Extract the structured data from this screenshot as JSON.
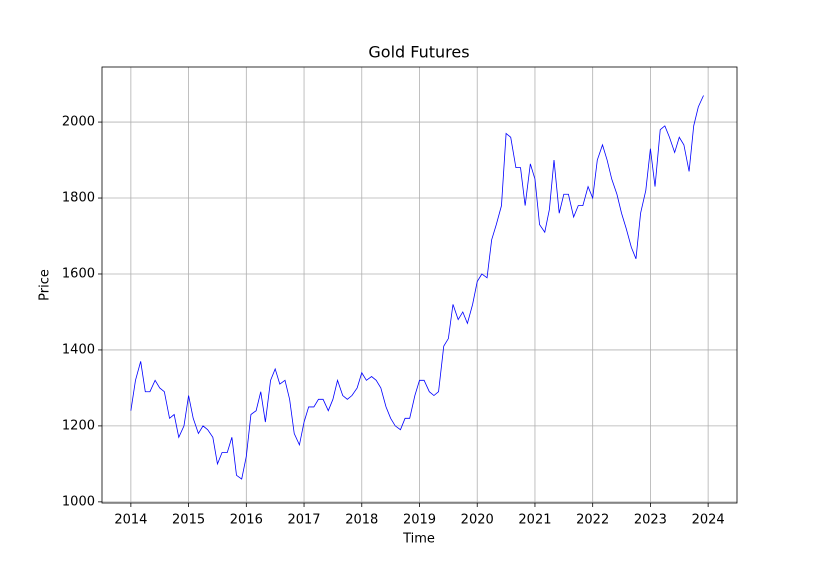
{
  "chart_data": {
    "type": "line",
    "title": "Gold Futures",
    "xlabel": "Time",
    "ylabel": "Price",
    "x": [
      2014.0,
      2014.08,
      2014.17,
      2014.25,
      2014.33,
      2014.42,
      2014.5,
      2014.58,
      2014.67,
      2014.75,
      2014.83,
      2014.92,
      2015.0,
      2015.08,
      2015.17,
      2015.25,
      2015.33,
      2015.42,
      2015.5,
      2015.58,
      2015.67,
      2015.75,
      2015.83,
      2015.92,
      2016.0,
      2016.08,
      2016.17,
      2016.25,
      2016.33,
      2016.42,
      2016.5,
      2016.58,
      2016.67,
      2016.75,
      2016.83,
      2016.92,
      2017.0,
      2017.08,
      2017.17,
      2017.25,
      2017.33,
      2017.42,
      2017.5,
      2017.58,
      2017.67,
      2017.75,
      2017.83,
      2017.92,
      2018.0,
      2018.08,
      2018.17,
      2018.25,
      2018.33,
      2018.42,
      2018.5,
      2018.58,
      2018.67,
      2018.75,
      2018.83,
      2018.92,
      2019.0,
      2019.08,
      2019.17,
      2019.25,
      2019.33,
      2019.42,
      2019.5,
      2019.58,
      2019.67,
      2019.75,
      2019.83,
      2019.92,
      2020.0,
      2020.08,
      2020.17,
      2020.25,
      2020.33,
      2020.42,
      2020.5,
      2020.58,
      2020.67,
      2020.75,
      2020.83,
      2020.92,
      2021.0,
      2021.08,
      2021.17,
      2021.25,
      2021.33,
      2021.42,
      2021.5,
      2021.58,
      2021.67,
      2021.75,
      2021.83,
      2021.92,
      2022.0,
      2022.08,
      2022.17,
      2022.25,
      2022.33,
      2022.42,
      2022.5,
      2022.58,
      2022.67,
      2022.75,
      2022.83,
      2022.92,
      2023.0,
      2023.08,
      2023.17,
      2023.25,
      2023.33,
      2023.42,
      2023.5,
      2023.58,
      2023.67,
      2023.75,
      2023.83,
      2023.92
    ],
    "series": [
      {
        "name": "Gold Futures",
        "color": "#0000ff",
        "values": [
          1240,
          1320,
          1370,
          1290,
          1290,
          1320,
          1300,
          1290,
          1220,
          1230,
          1170,
          1200,
          1280,
          1220,
          1180,
          1200,
          1190,
          1170,
          1100,
          1130,
          1130,
          1170,
          1070,
          1060,
          1120,
          1230,
          1240,
          1290,
          1210,
          1320,
          1350,
          1310,
          1320,
          1270,
          1180,
          1150,
          1210,
          1250,
          1250,
          1270,
          1270,
          1240,
          1270,
          1320,
          1280,
          1270,
          1280,
          1300,
          1340,
          1320,
          1330,
          1320,
          1300,
          1250,
          1220,
          1200,
          1190,
          1220,
          1220,
          1280,
          1320,
          1320,
          1290,
          1280,
          1290,
          1410,
          1430,
          1520,
          1480,
          1500,
          1470,
          1520,
          1580,
          1600,
          1590,
          1690,
          1730,
          1780,
          1970,
          1960,
          1880,
          1880,
          1780,
          1890,
          1850,
          1730,
          1710,
          1770,
          1900,
          1760,
          1810,
          1810,
          1750,
          1780,
          1780,
          1830,
          1800,
          1900,
          1940,
          1900,
          1850,
          1810,
          1760,
          1720,
          1670,
          1640,
          1760,
          1820,
          1930,
          1830,
          1980,
          1990,
          1960,
          1920,
          1960,
          1940,
          1870,
          1990,
          2040,
          2070
        ]
      }
    ],
    "xlim": [
      2013.5,
      2024.5
    ],
    "xticks": [
      2014,
      2015,
      2016,
      2017,
      2018,
      2019,
      2020,
      2021,
      2022,
      2023,
      2024
    ],
    "ylim": [
      997,
      2145
    ],
    "yticks": [
      1000,
      1200,
      1400,
      1600,
      1800,
      2000
    ],
    "grid": true
  }
}
